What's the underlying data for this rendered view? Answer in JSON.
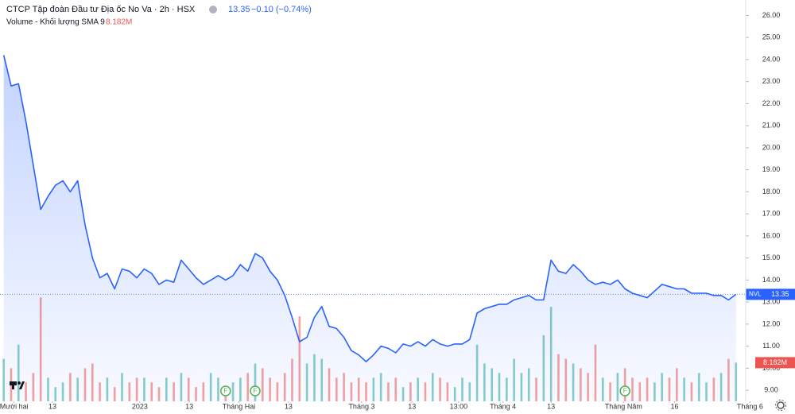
{
  "chart_data": {
    "type": "line",
    "title": "CTCP Tập đoàn Đầu tư Địa ốc No Va · 2h · HSX",
    "last_price_label": "13.35",
    "change_label": "−0.10 (−0.74%)",
    "xlim": [
      -0.5,
      101.5
    ],
    "xticks": [
      {
        "value": 1.4,
        "label": "Mười hai"
      },
      {
        "value": 6.6,
        "label": "13"
      },
      {
        "value": 18.4,
        "label": "2023"
      },
      {
        "value": 25.1,
        "label": "13"
      },
      {
        "value": 31.8,
        "label": "Tháng Hai"
      },
      {
        "value": 38.5,
        "label": "13"
      },
      {
        "value": 48.4,
        "label": "Tháng 3"
      },
      {
        "value": 55.2,
        "label": "13"
      },
      {
        "value": 61.5,
        "label": "13:00"
      },
      {
        "value": 67.5,
        "label": "Tháng 4"
      },
      {
        "value": 74.0,
        "label": "13"
      },
      {
        "value": 83.8,
        "label": "Tháng Năm"
      },
      {
        "value": 90.7,
        "label": "16"
      },
      {
        "value": 100.9,
        "label": "Tháng 6"
      }
    ],
    "ylim": [
      8.5,
      26.7
    ],
    "yticks": [
      {
        "value": 9,
        "label": "9.00"
      },
      {
        "value": 10,
        "label": "10.00"
      },
      {
        "value": 11,
        "label": "11.00"
      },
      {
        "value": 12,
        "label": "12.00"
      },
      {
        "value": 13,
        "label": "13.00"
      },
      {
        "value": 14,
        "label": "14.00"
      },
      {
        "value": 15,
        "label": "15.00"
      },
      {
        "value": 16,
        "label": "16.00"
      },
      {
        "value": 17,
        "label": "17.00"
      },
      {
        "value": 18,
        "label": "18.00"
      },
      {
        "value": 19,
        "label": "19.00"
      },
      {
        "value": 20,
        "label": "20.00"
      },
      {
        "value": 21,
        "label": "21.00"
      },
      {
        "value": 22,
        "label": "22.00"
      },
      {
        "value": 23,
        "label": "23.00"
      },
      {
        "value": 24,
        "label": "24.00"
      },
      {
        "value": 25,
        "label": "25.00"
      },
      {
        "value": 26,
        "label": "26.00"
      }
    ],
    "y2lim": [
      0,
      85
    ],
    "grid": false,
    "series": [
      {
        "name": "NVL",
        "color": "#2962ff",
        "values": [
          24.2,
          22.8,
          22.9,
          21.2,
          19.2,
          17.2,
          17.8,
          18.3,
          18.5,
          18.0,
          18.5,
          16.5,
          15.0,
          14.1,
          14.3,
          13.6,
          14.5,
          14.4,
          14.1,
          14.5,
          14.3,
          13.8,
          14.0,
          13.9,
          14.9,
          14.5,
          14.1,
          13.8,
          14.0,
          14.2,
          14.0,
          14.2,
          14.7,
          14.4,
          15.2,
          15.0,
          14.4,
          14.0,
          13.3,
          12.3,
          11.2,
          11.4,
          12.3,
          12.8,
          11.9,
          11.8,
          11.4,
          10.8,
          10.6,
          10.3,
          10.6,
          11.0,
          10.9,
          10.7,
          11.1,
          11.0,
          11.2,
          11.0,
          11.3,
          11.1,
          11.0,
          11.1,
          11.1,
          11.3,
          12.5,
          12.7,
          12.8,
          12.9,
          12.9,
          13.1,
          13.2,
          13.3,
          13.1,
          13.1,
          14.9,
          14.4,
          14.3,
          14.7,
          14.4,
          14.0,
          13.8,
          13.9,
          13.8,
          14.0,
          13.6,
          13.4,
          13.3,
          13.2,
          13.5,
          13.8,
          13.7,
          13.6,
          13.6,
          13.4,
          13.4,
          13.4,
          13.3,
          13.3,
          13.1,
          13.35
        ]
      },
      {
        "name": "Volume - Khối lượng SMA 9",
        "axis": "y2",
        "up_color": "#26a69a",
        "down_color": "#ef5350",
        "last_label": "8.182M",
        "values": [
          9,
          7,
          12,
          4,
          6,
          22,
          5,
          3,
          4,
          6,
          5,
          7,
          8,
          4,
          5,
          3,
          6,
          4,
          5,
          5,
          4,
          3,
          5,
          4,
          6,
          5,
          3,
          4,
          6,
          5,
          3,
          4,
          5,
          6,
          8,
          7,
          5,
          4,
          6,
          9,
          18,
          8,
          10,
          9,
          7,
          5,
          6,
          4,
          5,
          4,
          5,
          6,
          4,
          5,
          3,
          4,
          5,
          4,
          6,
          5,
          4,
          3,
          5,
          4,
          12,
          8,
          7,
          6,
          5,
          9,
          6,
          7,
          5,
          14,
          20,
          10,
          9,
          8,
          7,
          6,
          12,
          5,
          4,
          6,
          7,
          5,
          4,
          5,
          4,
          6,
          5,
          7,
          5,
          4,
          6,
          4,
          5,
          6,
          9,
          8.182
        ]
      }
    ],
    "earnings_markers": [
      {
        "label": "F",
        "x": 30
      },
      {
        "label": "F",
        "x": 34
      },
      {
        "label": "F",
        "x": 84
      }
    ]
  }
}
